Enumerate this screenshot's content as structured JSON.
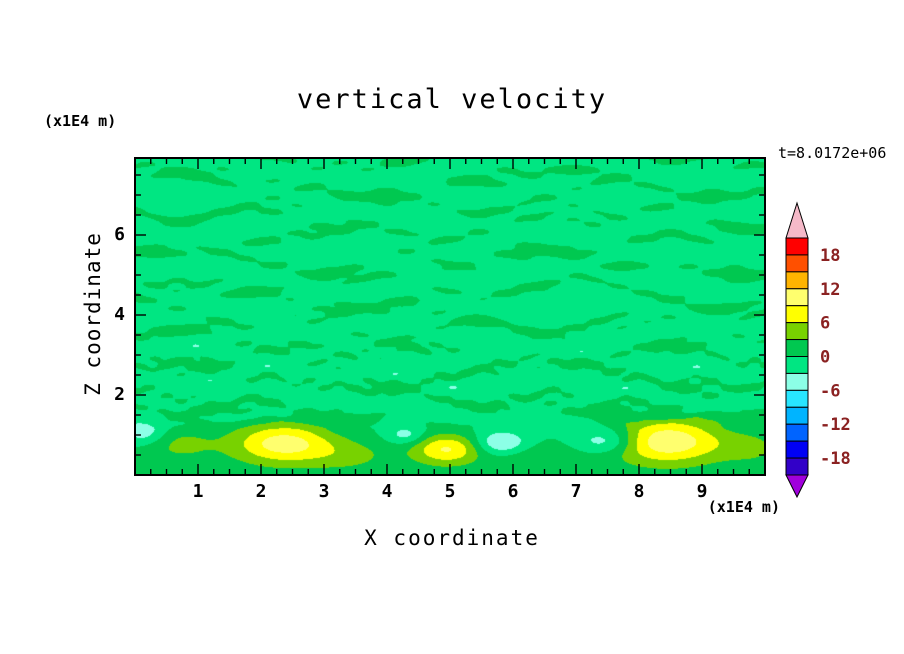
{
  "page": {
    "background": "#FFFFFF"
  },
  "chart_data": {
    "type": "contour",
    "title": "vertical velocity",
    "time_annotation": "t=8.0172e+06",
    "x_axis": {
      "label": "X coordinate",
      "unit": "(x1E4 m)",
      "range": [
        0,
        10
      ],
      "major_ticks": [
        1,
        2,
        3,
        4,
        5,
        6,
        7,
        8,
        9
      ],
      "minor_step": 0.25
    },
    "z_axis": {
      "label": "Z coordinate",
      "unit": "(x1E4 m)",
      "range": [
        0,
        7.925
      ],
      "major_ticks": [
        2,
        4,
        6
      ],
      "minor_step": 0.5
    },
    "colorbar": {
      "levels": [
        -21,
        -18,
        -15,
        -12,
        -9,
        -6,
        -3,
        0,
        3,
        6,
        9,
        12,
        15,
        18,
        21
      ],
      "colors": [
        "#3200C8",
        "#0000F5",
        "#0064FF",
        "#00B4FF",
        "#28E6FF",
        "#8CFFE6",
        "#00E682",
        "#00C850",
        "#78D200",
        "#FFFF00",
        "#FFFF6E",
        "#FFB400",
        "#FF5000",
        "#FF0000"
      ],
      "under_color": "#A000DC",
      "over_color": "#F5B9C8",
      "labels": [
        18,
        12,
        6,
        0,
        -6,
        -12,
        -18
      ],
      "label_color": "#8B2222"
    },
    "field": {
      "base": -0.9,
      "streak": {
        "amp": 2.0,
        "soft": 1.5,
        "z_on": [
          0.9,
          1.7
        ]
      },
      "modes": [
        {
          "a": 1.0,
          "fx": 0.18,
          "fz": 1.05,
          "px": 0.1,
          "pz": 0.15
        },
        {
          "a": 0.85,
          "fx": 0.33,
          "fz": 1.45,
          "px": 0.55,
          "pz": 0.4
        },
        {
          "a": 0.7,
          "fx": 0.46,
          "fz": 0.85,
          "px": 0.8,
          "pz": 0.7
        },
        {
          "a": 0.6,
          "fx": 0.71,
          "fz": 1.8,
          "px": 0.25,
          "pz": 0.05
        },
        {
          "a": 0.5,
          "fx": 0.95,
          "fz": 2.3,
          "px": 0.6,
          "pz": 0.5
        },
        {
          "a": 0.45,
          "fx": 1.35,
          "fz": 2.9,
          "px": 0.35,
          "pz": 0.85
        }
      ],
      "midband": {
        "a": 0.7,
        "z0": 2.4,
        "sz": 1.0,
        "fx": 2.2,
        "fz": 2.8,
        "px": 0.13,
        "pz": 0.4
      },
      "bottom_bias": {
        "amp": 1.6,
        "scale": 1.15
      },
      "blobs": [
        {
          "A": 10.5,
          "x0": 2.35,
          "z0": 0.8,
          "sx": 0.8,
          "sz": 0.5
        },
        {
          "A": 9.0,
          "x0": 4.95,
          "z0": 0.65,
          "sx": 0.55,
          "sz": 0.38
        },
        {
          "A": 11.5,
          "x0": 8.45,
          "z0": 0.85,
          "sx": 0.9,
          "sz": 0.55
        },
        {
          "A": 3.5,
          "x0": 0.7,
          "z0": 0.8,
          "sx": 0.6,
          "sz": 0.45
        },
        {
          "A": 3.0,
          "x0": 3.4,
          "z0": 0.5,
          "sx": 0.7,
          "sz": 0.4
        },
        {
          "A": 2.5,
          "x0": 6.4,
          "z0": 0.4,
          "sx": 0.6,
          "sz": 0.35
        },
        {
          "A": 3.0,
          "x0": 9.8,
          "z0": 0.7,
          "sx": 0.5,
          "sz": 0.4
        },
        {
          "A": -6.5,
          "x0": 5.8,
          "z0": 0.8,
          "sx": 0.42,
          "sz": 0.3
        },
        {
          "A": -6.5,
          "x0": 7.5,
          "z0": 0.85,
          "sx": 0.5,
          "sz": 0.32
        },
        {
          "A": -5.0,
          "x0": 0.15,
          "z0": 1.05,
          "sx": 0.35,
          "sz": 0.3
        },
        {
          "A": -4.5,
          "x0": 4.3,
          "z0": 1.0,
          "sx": 0.3,
          "sz": 0.25
        }
      ]
    }
  }
}
